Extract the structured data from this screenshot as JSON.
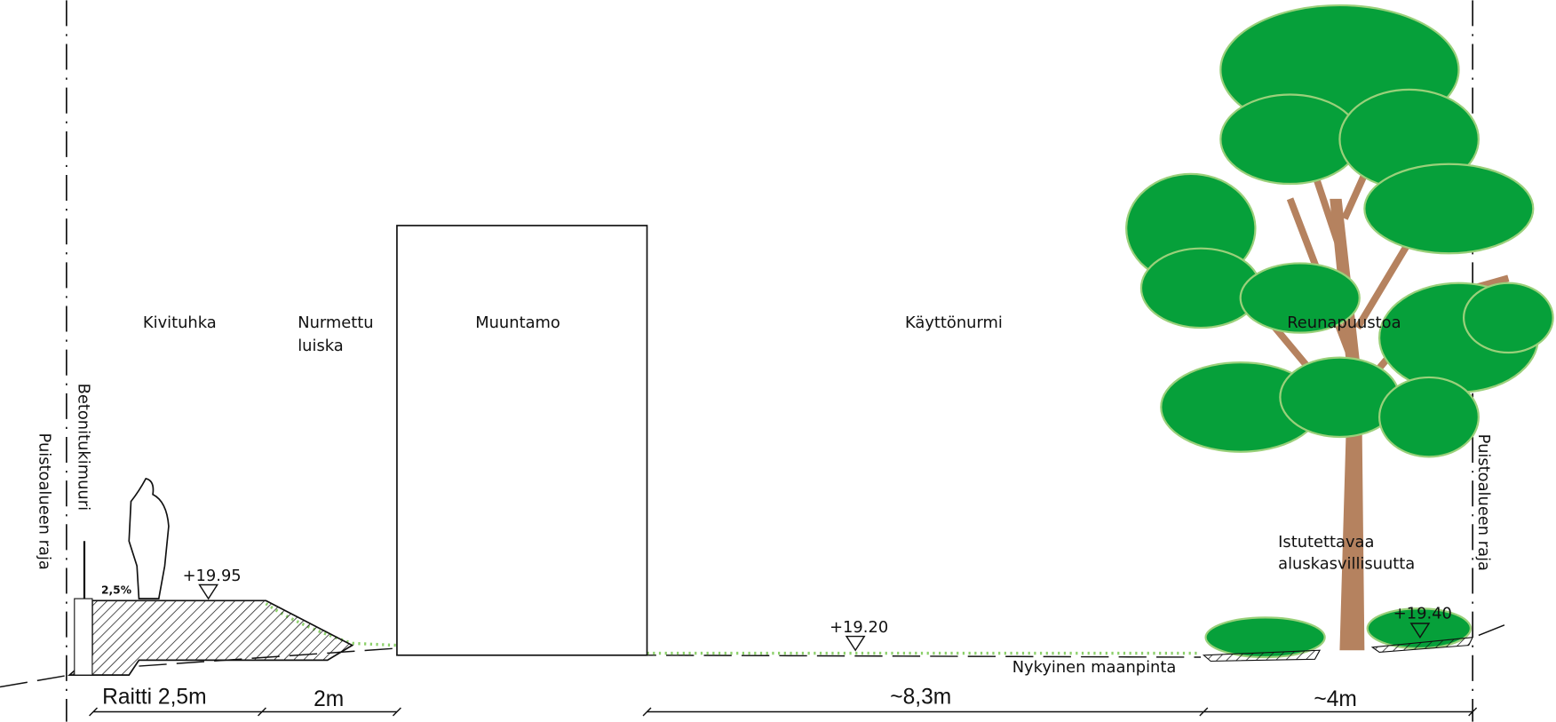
{
  "zones": {
    "kivituhka": "Kivituhka",
    "luiska": [
      "Nurmettu",
      "luiska"
    ],
    "muuntamo": "Muuntamo",
    "kayttonurmi": "Käyttönurmi",
    "reunapuustoa": "Reunapuustoa"
  },
  "wall_label": "Betonitukimuuri",
  "boundary_left": "Puistoalueen raja",
  "boundary_right": "Puistoalueen raja",
  "slope": "2,5%",
  "elevations": [
    "+19.95",
    "+19.20",
    "+19.40"
  ],
  "planting": [
    "Istutettavaa",
    "aluskasvillisuutta"
  ],
  "existing_ground": "Nykyinen maanpinta",
  "dimensions": [
    "Raitti 2,5m",
    "2m",
    "~8,3m",
    "~4m"
  ]
}
